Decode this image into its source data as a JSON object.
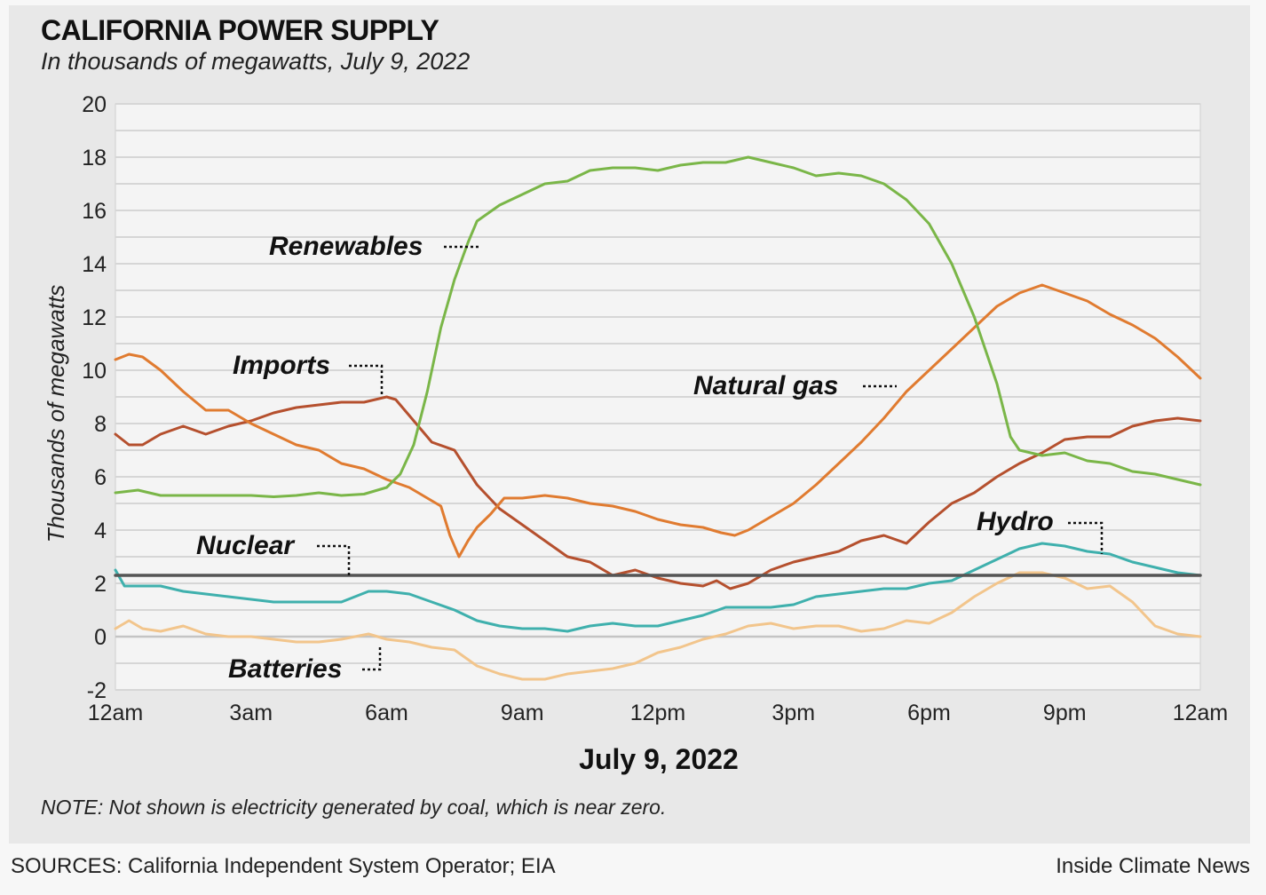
{
  "header": {
    "title": "CALIFORNIA POWER SUPPLY",
    "subtitle": "In thousands of megawatts, July 9, 2022"
  },
  "footer": {
    "note": "NOTE: Not shown is electricity generated by coal, which is near zero.",
    "sources": "SOURCES: California Independent System Operator; EIA",
    "credit": "Inside Climate News"
  },
  "chart_data": {
    "type": "line",
    "ylabel": "Thousands of megawatts",
    "xlabel": "July 9, 2022",
    "ylim": [
      -2,
      20
    ],
    "yticks": [
      -2,
      0,
      2,
      4,
      6,
      8,
      10,
      12,
      14,
      16,
      18,
      20
    ],
    "xlim": [
      0,
      24
    ],
    "xticks": [
      {
        "value": 0,
        "label": "12am"
      },
      {
        "value": 3,
        "label": "3am"
      },
      {
        "value": 6,
        "label": "6am"
      },
      {
        "value": 9,
        "label": "9am"
      },
      {
        "value": 12,
        "label": "12pm"
      },
      {
        "value": 15,
        "label": "3pm"
      },
      {
        "value": 18,
        "label": "6pm"
      },
      {
        "value": 21,
        "label": "9pm"
      },
      {
        "value": 24,
        "label": "12am"
      }
    ],
    "grid": true,
    "series": [
      {
        "name": "Renewables",
        "color": "#7ab648",
        "points": [
          [
            0,
            5.4
          ],
          [
            0.5,
            5.5
          ],
          [
            1,
            5.3
          ],
          [
            2,
            5.3
          ],
          [
            3,
            5.3
          ],
          [
            3.5,
            5.25
          ],
          [
            4,
            5.3
          ],
          [
            4.5,
            5.4
          ],
          [
            5,
            5.3
          ],
          [
            5.5,
            5.35
          ],
          [
            6,
            5.6
          ],
          [
            6.3,
            6.1
          ],
          [
            6.6,
            7.2
          ],
          [
            6.9,
            9.2
          ],
          [
            7.2,
            11.6
          ],
          [
            7.5,
            13.4
          ],
          [
            7.8,
            14.8
          ],
          [
            8,
            15.6
          ],
          [
            8.5,
            16.2
          ],
          [
            9,
            16.6
          ],
          [
            9.5,
            17.0
          ],
          [
            10,
            17.1
          ],
          [
            10.5,
            17.5
          ],
          [
            11,
            17.6
          ],
          [
            11.5,
            17.6
          ],
          [
            12,
            17.5
          ],
          [
            12.5,
            17.7
          ],
          [
            13,
            17.8
          ],
          [
            13.5,
            17.8
          ],
          [
            14,
            18.0
          ],
          [
            14.5,
            17.8
          ],
          [
            15,
            17.6
          ],
          [
            15.5,
            17.3
          ],
          [
            16,
            17.4
          ],
          [
            16.5,
            17.3
          ],
          [
            17,
            17.0
          ],
          [
            17.5,
            16.4
          ],
          [
            18,
            15.5
          ],
          [
            18.5,
            14.0
          ],
          [
            19,
            12.0
          ],
          [
            19.5,
            9.5
          ],
          [
            19.8,
            7.5
          ],
          [
            20,
            7.0
          ],
          [
            20.5,
            6.8
          ],
          [
            21,
            6.9
          ],
          [
            21.5,
            6.6
          ],
          [
            22,
            6.5
          ],
          [
            22.5,
            6.2
          ],
          [
            23,
            6.1
          ],
          [
            23.5,
            5.9
          ],
          [
            24,
            5.7
          ]
        ]
      },
      {
        "name": "Natural gas",
        "color": "#e07b30",
        "points": [
          [
            0,
            10.4
          ],
          [
            0.3,
            10.6
          ],
          [
            0.6,
            10.5
          ],
          [
            1,
            10.0
          ],
          [
            1.5,
            9.2
          ],
          [
            2,
            8.5
          ],
          [
            2.5,
            8.5
          ],
          [
            3,
            8.0
          ],
          [
            3.5,
            7.6
          ],
          [
            4,
            7.2
          ],
          [
            4.5,
            7.0
          ],
          [
            5,
            6.5
          ],
          [
            5.5,
            6.3
          ],
          [
            6,
            5.9
          ],
          [
            6.5,
            5.6
          ],
          [
            7,
            5.1
          ],
          [
            7.2,
            4.9
          ],
          [
            7.4,
            3.8
          ],
          [
            7.6,
            3.0
          ],
          [
            7.8,
            3.6
          ],
          [
            8,
            4.1
          ],
          [
            8.3,
            4.6
          ],
          [
            8.6,
            5.2
          ],
          [
            9,
            5.2
          ],
          [
            9.5,
            5.3
          ],
          [
            10,
            5.2
          ],
          [
            10.5,
            5.0
          ],
          [
            11,
            4.9
          ],
          [
            11.5,
            4.7
          ],
          [
            12,
            4.4
          ],
          [
            12.5,
            4.2
          ],
          [
            13,
            4.1
          ],
          [
            13.4,
            3.9
          ],
          [
            13.7,
            3.8
          ],
          [
            14,
            4.0
          ],
          [
            14.5,
            4.5
          ],
          [
            15,
            5.0
          ],
          [
            15.5,
            5.7
          ],
          [
            16,
            6.5
          ],
          [
            16.5,
            7.3
          ],
          [
            17,
            8.2
          ],
          [
            17.5,
            9.2
          ],
          [
            18,
            10.0
          ],
          [
            18.5,
            10.8
          ],
          [
            19,
            11.6
          ],
          [
            19.5,
            12.4
          ],
          [
            20,
            12.9
          ],
          [
            20.5,
            13.2
          ],
          [
            21,
            12.9
          ],
          [
            21.5,
            12.6
          ],
          [
            22,
            12.1
          ],
          [
            22.5,
            11.7
          ],
          [
            23,
            11.2
          ],
          [
            23.5,
            10.5
          ],
          [
            24,
            9.7
          ]
        ]
      },
      {
        "name": "Imports",
        "color": "#b5502e",
        "points": [
          [
            0,
            7.6
          ],
          [
            0.3,
            7.2
          ],
          [
            0.6,
            7.2
          ],
          [
            1,
            7.6
          ],
          [
            1.5,
            7.9
          ],
          [
            2,
            7.6
          ],
          [
            2.5,
            7.9
          ],
          [
            3,
            8.1
          ],
          [
            3.5,
            8.4
          ],
          [
            4,
            8.6
          ],
          [
            4.5,
            8.7
          ],
          [
            5,
            8.8
          ],
          [
            5.5,
            8.8
          ],
          [
            6,
            9.0
          ],
          [
            6.2,
            8.9
          ],
          [
            6.5,
            8.3
          ],
          [
            7,
            7.3
          ],
          [
            7.5,
            7.0
          ],
          [
            8,
            5.7
          ],
          [
            8.5,
            4.8
          ],
          [
            9,
            4.2
          ],
          [
            9.5,
            3.6
          ],
          [
            10,
            3.0
          ],
          [
            10.5,
            2.8
          ],
          [
            11,
            2.3
          ],
          [
            11.5,
            2.5
          ],
          [
            12,
            2.2
          ],
          [
            12.5,
            2.0
          ],
          [
            13,
            1.9
          ],
          [
            13.3,
            2.1
          ],
          [
            13.6,
            1.8
          ],
          [
            14,
            2.0
          ],
          [
            14.5,
            2.5
          ],
          [
            15,
            2.8
          ],
          [
            15.5,
            3.0
          ],
          [
            16,
            3.2
          ],
          [
            16.5,
            3.6
          ],
          [
            17,
            3.8
          ],
          [
            17.5,
            3.5
          ],
          [
            18,
            4.3
          ],
          [
            18.5,
            5.0
          ],
          [
            19,
            5.4
          ],
          [
            19.5,
            6.0
          ],
          [
            20,
            6.5
          ],
          [
            20.5,
            6.9
          ],
          [
            21,
            7.4
          ],
          [
            21.5,
            7.5
          ],
          [
            22,
            7.5
          ],
          [
            22.5,
            7.9
          ],
          [
            23,
            8.1
          ],
          [
            23.5,
            8.2
          ],
          [
            24,
            8.1
          ]
        ]
      },
      {
        "name": "Hydro",
        "color": "#3fb0ad",
        "points": [
          [
            0,
            2.5
          ],
          [
            0.2,
            1.9
          ],
          [
            0.5,
            1.9
          ],
          [
            1,
            1.9
          ],
          [
            1.5,
            1.7
          ],
          [
            2,
            1.6
          ],
          [
            2.5,
            1.5
          ],
          [
            3,
            1.4
          ],
          [
            3.5,
            1.3
          ],
          [
            4,
            1.3
          ],
          [
            4.5,
            1.3
          ],
          [
            5,
            1.3
          ],
          [
            5.3,
            1.5
          ],
          [
            5.6,
            1.7
          ],
          [
            6,
            1.7
          ],
          [
            6.5,
            1.6
          ],
          [
            7,
            1.3
          ],
          [
            7.5,
            1.0
          ],
          [
            8,
            0.6
          ],
          [
            8.5,
            0.4
          ],
          [
            9,
            0.3
          ],
          [
            9.5,
            0.3
          ],
          [
            10,
            0.2
          ],
          [
            10.5,
            0.4
          ],
          [
            11,
            0.5
          ],
          [
            11.5,
            0.4
          ],
          [
            12,
            0.4
          ],
          [
            12.5,
            0.6
          ],
          [
            13,
            0.8
          ],
          [
            13.5,
            1.1
          ],
          [
            14,
            1.1
          ],
          [
            14.5,
            1.1
          ],
          [
            15,
            1.2
          ],
          [
            15.5,
            1.5
          ],
          [
            16,
            1.6
          ],
          [
            16.5,
            1.7
          ],
          [
            17,
            1.8
          ],
          [
            17.5,
            1.8
          ],
          [
            18,
            2.0
          ],
          [
            18.5,
            2.1
          ],
          [
            19,
            2.5
          ],
          [
            19.5,
            2.9
          ],
          [
            20,
            3.3
          ],
          [
            20.5,
            3.5
          ],
          [
            21,
            3.4
          ],
          [
            21.5,
            3.2
          ],
          [
            22,
            3.1
          ],
          [
            22.5,
            2.8
          ],
          [
            23,
            2.6
          ],
          [
            23.5,
            2.4
          ],
          [
            24,
            2.3
          ]
        ]
      },
      {
        "name": "Batteries",
        "color": "#f2c58c",
        "points": [
          [
            0,
            0.3
          ],
          [
            0.3,
            0.6
          ],
          [
            0.6,
            0.3
          ],
          [
            1,
            0.2
          ],
          [
            1.5,
            0.4
          ],
          [
            2,
            0.1
          ],
          [
            2.5,
            0.0
          ],
          [
            3,
            0.0
          ],
          [
            3.5,
            -0.1
          ],
          [
            4,
            -0.2
          ],
          [
            4.5,
            -0.2
          ],
          [
            5,
            -0.1
          ],
          [
            5.3,
            0.0
          ],
          [
            5.6,
            0.1
          ],
          [
            6,
            -0.1
          ],
          [
            6.5,
            -0.2
          ],
          [
            7,
            -0.4
          ],
          [
            7.5,
            -0.5
          ],
          [
            8,
            -1.1
          ],
          [
            8.5,
            -1.4
          ],
          [
            9,
            -1.6
          ],
          [
            9.5,
            -1.6
          ],
          [
            10,
            -1.4
          ],
          [
            10.5,
            -1.3
          ],
          [
            11,
            -1.2
          ],
          [
            11.5,
            -1.0
          ],
          [
            12,
            -0.6
          ],
          [
            12.5,
            -0.4
          ],
          [
            13,
            -0.1
          ],
          [
            13.5,
            0.1
          ],
          [
            14,
            0.4
          ],
          [
            14.5,
            0.5
          ],
          [
            15,
            0.3
          ],
          [
            15.5,
            0.4
          ],
          [
            16,
            0.4
          ],
          [
            16.5,
            0.2
          ],
          [
            17,
            0.3
          ],
          [
            17.5,
            0.6
          ],
          [
            18,
            0.5
          ],
          [
            18.5,
            0.9
          ],
          [
            19,
            1.5
          ],
          [
            19.5,
            2.0
          ],
          [
            20,
            2.4
          ],
          [
            20.5,
            2.4
          ],
          [
            21,
            2.2
          ],
          [
            21.5,
            1.8
          ],
          [
            22,
            1.9
          ],
          [
            22.5,
            1.3
          ],
          [
            23,
            0.4
          ],
          [
            23.5,
            0.1
          ],
          [
            24,
            0.0
          ]
        ]
      },
      {
        "name": "Nuclear",
        "color": "#555555",
        "points": [
          [
            0,
            2.3
          ],
          [
            24,
            2.3
          ]
        ]
      }
    ],
    "annotations": [
      {
        "series": "Renewables",
        "text": "Renewables"
      },
      {
        "series": "Imports",
        "text": "Imports"
      },
      {
        "series": "Natural gas",
        "text": "Natural gas"
      },
      {
        "series": "Nuclear",
        "text": "Nuclear"
      },
      {
        "series": "Hydro",
        "text": "Hydro"
      },
      {
        "series": "Batteries",
        "text": "Batteries"
      }
    ]
  }
}
